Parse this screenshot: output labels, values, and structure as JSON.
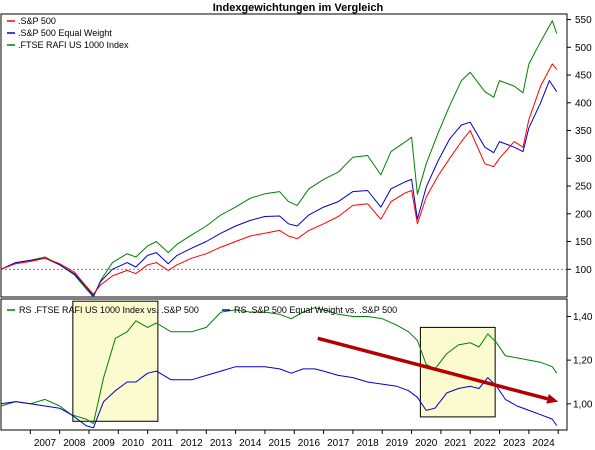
{
  "chart_data": [
    {
      "type": "line",
      "title": "Indexgewichtungen im Vergleich",
      "ylim": [
        50,
        560
      ],
      "yticks": [
        100,
        150,
        200,
        250,
        300,
        350,
        400,
        450,
        500,
        550
      ],
      "reference_line": 100,
      "legend_position": "top-left",
      "series": [
        {
          "name": ".S&P 500",
          "color": "#ff0000",
          "points": [
            [
              2006.0,
              100
            ],
            [
              2006.5,
              110
            ],
            [
              2007.0,
              114
            ],
            [
              2007.5,
              120
            ],
            [
              2008.0,
              110
            ],
            [
              2008.5,
              95
            ],
            [
              2008.9,
              70
            ],
            [
              2009.15,
              55
            ],
            [
              2009.4,
              72
            ],
            [
              2009.8,
              88
            ],
            [
              2010.3,
              98
            ],
            [
              2010.6,
              92
            ],
            [
              2011.0,
              108
            ],
            [
              2011.3,
              112
            ],
            [
              2011.7,
              98
            ],
            [
              2012.0,
              108
            ],
            [
              2012.5,
              120
            ],
            [
              2013.0,
              128
            ],
            [
              2013.5,
              140
            ],
            [
              2014.0,
              150
            ],
            [
              2014.5,
              160
            ],
            [
              2015.0,
              165
            ],
            [
              2015.5,
              170
            ],
            [
              2015.8,
              160
            ],
            [
              2016.1,
              155
            ],
            [
              2016.5,
              170
            ],
            [
              2017.0,
              182
            ],
            [
              2017.5,
              195
            ],
            [
              2018.0,
              215
            ],
            [
              2018.5,
              218
            ],
            [
              2018.95,
              190
            ],
            [
              2019.3,
              222
            ],
            [
              2019.8,
              238
            ],
            [
              2020.0,
              242
            ],
            [
              2020.2,
              182
            ],
            [
              2020.5,
              230
            ],
            [
              2020.9,
              268
            ],
            [
              2021.3,
              300
            ],
            [
              2021.7,
              330
            ],
            [
              2022.0,
              350
            ],
            [
              2022.5,
              290
            ],
            [
              2022.8,
              285
            ],
            [
              2023.0,
              300
            ],
            [
              2023.5,
              330
            ],
            [
              2023.8,
              320
            ],
            [
              2024.0,
              370
            ],
            [
              2024.4,
              430
            ],
            [
              2024.8,
              470
            ],
            [
              2024.95,
              460
            ]
          ]
        },
        {
          "name": ".S&P 500 Equal Weight",
          "color": "#0000cc",
          "points": [
            [
              2006.0,
              100
            ],
            [
              2006.5,
              112
            ],
            [
              2007.0,
              116
            ],
            [
              2007.5,
              120
            ],
            [
              2008.0,
              108
            ],
            [
              2008.5,
              92
            ],
            [
              2008.9,
              68
            ],
            [
              2009.15,
              52
            ],
            [
              2009.4,
              78
            ],
            [
              2009.8,
              100
            ],
            [
              2010.3,
              112
            ],
            [
              2010.6,
              104
            ],
            [
              2011.0,
              125
            ],
            [
              2011.3,
              130
            ],
            [
              2011.7,
              110
            ],
            [
              2012.0,
              125
            ],
            [
              2012.5,
              138
            ],
            [
              2013.0,
              150
            ],
            [
              2013.5,
              165
            ],
            [
              2014.0,
              178
            ],
            [
              2014.5,
              188
            ],
            [
              2015.0,
              195
            ],
            [
              2015.5,
              196
            ],
            [
              2015.8,
              182
            ],
            [
              2016.1,
              178
            ],
            [
              2016.5,
              198
            ],
            [
              2017.0,
              212
            ],
            [
              2017.5,
              222
            ],
            [
              2018.0,
              240
            ],
            [
              2018.5,
              242
            ],
            [
              2018.95,
              212
            ],
            [
              2019.3,
              245
            ],
            [
              2019.8,
              258
            ],
            [
              2020.0,
              262
            ],
            [
              2020.2,
              190
            ],
            [
              2020.5,
              248
            ],
            [
              2020.9,
              295
            ],
            [
              2021.3,
              335
            ],
            [
              2021.7,
              360
            ],
            [
              2022.0,
              365
            ],
            [
              2022.5,
              320
            ],
            [
              2022.8,
              310
            ],
            [
              2023.0,
              330
            ],
            [
              2023.5,
              320
            ],
            [
              2023.8,
              312
            ],
            [
              2024.0,
              355
            ],
            [
              2024.4,
              400
            ],
            [
              2024.7,
              440
            ],
            [
              2024.95,
              420
            ]
          ]
        },
        {
          "name": ".FTSE RAFI US 1000 Index",
          "color": "#008000",
          "points": [
            [
              2006.0,
              100
            ],
            [
              2006.5,
              112
            ],
            [
              2007.0,
              116
            ],
            [
              2007.5,
              122
            ],
            [
              2008.0,
              108
            ],
            [
              2008.5,
              90
            ],
            [
              2008.9,
              65
            ],
            [
              2009.15,
              50
            ],
            [
              2009.4,
              80
            ],
            [
              2009.8,
              112
            ],
            [
              2010.3,
              128
            ],
            [
              2010.6,
              122
            ],
            [
              2011.0,
              142
            ],
            [
              2011.3,
              150
            ],
            [
              2011.7,
              130
            ],
            [
              2012.0,
              145
            ],
            [
              2012.5,
              162
            ],
            [
              2013.0,
              178
            ],
            [
              2013.5,
              198
            ],
            [
              2014.0,
              212
            ],
            [
              2014.5,
              228
            ],
            [
              2015.0,
              236
            ],
            [
              2015.5,
              240
            ],
            [
              2015.8,
              222
            ],
            [
              2016.1,
              215
            ],
            [
              2016.5,
              245
            ],
            [
              2017.0,
              262
            ],
            [
              2017.5,
              275
            ],
            [
              2018.0,
              302
            ],
            [
              2018.5,
              305
            ],
            [
              2018.95,
              270
            ],
            [
              2019.3,
              312
            ],
            [
              2019.8,
              330
            ],
            [
              2020.0,
              338
            ],
            [
              2020.2,
              235
            ],
            [
              2020.5,
              290
            ],
            [
              2020.9,
              345
            ],
            [
              2021.3,
              395
            ],
            [
              2021.7,
              440
            ],
            [
              2022.0,
              455
            ],
            [
              2022.5,
              420
            ],
            [
              2022.8,
              410
            ],
            [
              2023.0,
              440
            ],
            [
              2023.5,
              430
            ],
            [
              2023.8,
              418
            ],
            [
              2024.0,
              470
            ],
            [
              2024.4,
              510
            ],
            [
              2024.8,
              548
            ],
            [
              2024.95,
              525
            ]
          ]
        }
      ]
    },
    {
      "type": "line",
      "ylim": [
        0.88,
        1.48
      ],
      "yticks": [
        1.0,
        1.2,
        1.4
      ],
      "ytick_labels": [
        "1,00",
        "1,20",
        "1,40"
      ],
      "xlim": [
        2006,
        2025.3
      ],
      "xticks": [
        "2007",
        "2008",
        "2009",
        "2010",
        "2011",
        "2012",
        "2013",
        "2014",
        "2015",
        "2016",
        "2017",
        "2018",
        "2019",
        "2020",
        "2021",
        "2022",
        "2023",
        "2024"
      ],
      "legend_position": "top-left",
      "highlight_boxes": [
        {
          "x0": 2008.45,
          "x1": 2011.35,
          "y0": 0.92,
          "y1": 1.47
        },
        {
          "x0": 2020.3,
          "x1": 2022.85,
          "y0": 0.94,
          "y1": 1.35
        }
      ],
      "trend_arrow": {
        "x0": 2016.8,
        "y0": 1.3,
        "x1": 2025.0,
        "y1": 1.01,
        "color": "#b40000"
      },
      "series": [
        {
          "name": "RS .FTSE RAFI US 1000 Index vs. .S&P 500",
          "color": "#008000",
          "points": [
            [
              2006.0,
              0.99
            ],
            [
              2006.5,
              1.01
            ],
            [
              2007.0,
              1.0
            ],
            [
              2007.5,
              1.02
            ],
            [
              2008.0,
              0.99
            ],
            [
              2008.4,
              0.95
            ],
            [
              2008.9,
              0.93
            ],
            [
              2009.15,
              0.91
            ],
            [
              2009.5,
              1.12
            ],
            [
              2009.9,
              1.3
            ],
            [
              2010.3,
              1.33
            ],
            [
              2010.6,
              1.38
            ],
            [
              2011.0,
              1.35
            ],
            [
              2011.3,
              1.37
            ],
            [
              2011.8,
              1.33
            ],
            [
              2012.5,
              1.33
            ],
            [
              2013.0,
              1.35
            ],
            [
              2013.5,
              1.42
            ],
            [
              2014.0,
              1.43
            ],
            [
              2014.5,
              1.42
            ],
            [
              2015.0,
              1.42
            ],
            [
              2015.5,
              1.41
            ],
            [
              2015.9,
              1.39
            ],
            [
              2016.3,
              1.42
            ],
            [
              2016.7,
              1.44
            ],
            [
              2017.0,
              1.43
            ],
            [
              2017.5,
              1.41
            ],
            [
              2018.0,
              1.4
            ],
            [
              2018.5,
              1.4
            ],
            [
              2019.0,
              1.39
            ],
            [
              2019.5,
              1.36
            ],
            [
              2019.9,
              1.33
            ],
            [
              2020.2,
              1.29
            ],
            [
              2020.5,
              1.18
            ],
            [
              2020.8,
              1.16
            ],
            [
              2021.2,
              1.23
            ],
            [
              2021.6,
              1.27
            ],
            [
              2022.0,
              1.28
            ],
            [
              2022.3,
              1.26
            ],
            [
              2022.6,
              1.32
            ],
            [
              2022.9,
              1.28
            ],
            [
              2023.2,
              1.22
            ],
            [
              2023.6,
              1.21
            ],
            [
              2024.0,
              1.2
            ],
            [
              2024.4,
              1.19
            ],
            [
              2024.8,
              1.17
            ],
            [
              2024.95,
              1.14
            ]
          ]
        },
        {
          "name": "RS .S&P 500 Equal Weight vs. .S&P 500",
          "color": "#0000cc",
          "points": [
            [
              2006.0,
              1.0
            ],
            [
              2006.5,
              1.01
            ],
            [
              2007.0,
              1.0
            ],
            [
              2007.5,
              0.99
            ],
            [
              2008.0,
              0.98
            ],
            [
              2008.4,
              0.95
            ],
            [
              2008.9,
              0.9
            ],
            [
              2009.15,
              0.89
            ],
            [
              2009.5,
              1.01
            ],
            [
              2009.9,
              1.06
            ],
            [
              2010.3,
              1.1
            ],
            [
              2010.6,
              1.1
            ],
            [
              2011.0,
              1.14
            ],
            [
              2011.3,
              1.15
            ],
            [
              2011.8,
              1.11
            ],
            [
              2012.5,
              1.11
            ],
            [
              2013.0,
              1.13
            ],
            [
              2013.5,
              1.15
            ],
            [
              2014.0,
              1.17
            ],
            [
              2014.5,
              1.17
            ],
            [
              2015.0,
              1.17
            ],
            [
              2015.5,
              1.16
            ],
            [
              2015.9,
              1.14
            ],
            [
              2016.3,
              1.16
            ],
            [
              2016.7,
              1.16
            ],
            [
              2017.0,
              1.15
            ],
            [
              2017.5,
              1.13
            ],
            [
              2018.0,
              1.12
            ],
            [
              2018.5,
              1.1
            ],
            [
              2019.0,
              1.09
            ],
            [
              2019.5,
              1.08
            ],
            [
              2019.9,
              1.06
            ],
            [
              2020.2,
              1.03
            ],
            [
              2020.5,
              0.97
            ],
            [
              2020.8,
              0.98
            ],
            [
              2021.2,
              1.05
            ],
            [
              2021.6,
              1.07
            ],
            [
              2022.0,
              1.08
            ],
            [
              2022.3,
              1.07
            ],
            [
              2022.6,
              1.12
            ],
            [
              2022.9,
              1.08
            ],
            [
              2023.2,
              1.02
            ],
            [
              2023.6,
              0.99
            ],
            [
              2024.0,
              0.97
            ],
            [
              2024.4,
              0.95
            ],
            [
              2024.8,
              0.93
            ],
            [
              2024.95,
              0.9
            ]
          ]
        }
      ]
    }
  ]
}
